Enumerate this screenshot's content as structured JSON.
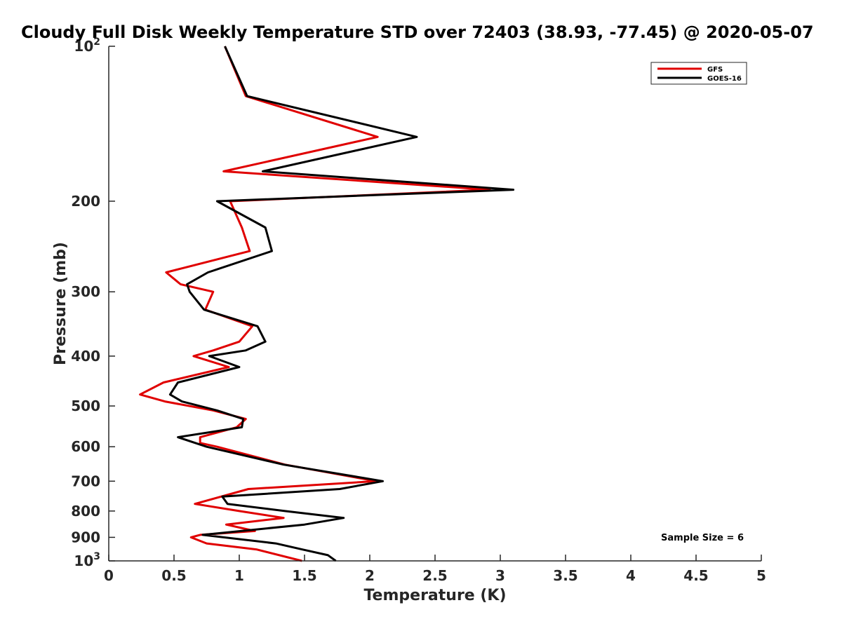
{
  "chart_data": {
    "type": "line",
    "title": "Cloudy Full Disk Weekly Temperature STD over 72403 (38.93, -77.45) @ 2020-05-07",
    "xlabel": "Temperature (K)",
    "ylabel": "Pressure (mb)",
    "xlim": [
      0,
      5
    ],
    "ylim": [
      100,
      1000
    ],
    "y_scale": "log",
    "y_reversed": true,
    "x_ticks": [
      {
        "value": 0,
        "label": "0"
      },
      {
        "value": 0.5,
        "label": "0.5"
      },
      {
        "value": 1,
        "label": "1"
      },
      {
        "value": 1.5,
        "label": "1.5"
      },
      {
        "value": 2,
        "label": "2"
      },
      {
        "value": 2.5,
        "label": "2.5"
      },
      {
        "value": 3,
        "label": "3"
      },
      {
        "value": 3.5,
        "label": "3.5"
      },
      {
        "value": 4,
        "label": "4"
      },
      {
        "value": 4.5,
        "label": "4.5"
      },
      {
        "value": 5,
        "label": "5"
      }
    ],
    "y_ticks": [
      {
        "value": 100,
        "base": "10",
        "exp": "2"
      },
      {
        "value": 200,
        "label": "200"
      },
      {
        "value": 300,
        "label": "300"
      },
      {
        "value": 400,
        "label": "400"
      },
      {
        "value": 500,
        "label": "500"
      },
      {
        "value": 600,
        "label": "600"
      },
      {
        "value": 700,
        "label": "700"
      },
      {
        "value": 800,
        "label": "800"
      },
      {
        "value": 900,
        "label": "900"
      },
      {
        "value": 1000,
        "base": "10",
        "exp": "3"
      }
    ],
    "grid": false,
    "legend_position": "top-right",
    "annotation": "Sample Size = 6",
    "series": [
      {
        "name": "GFS",
        "color": "#e00000",
        "points": [
          [
            0.89,
            100
          ],
          [
            1.05,
            125
          ],
          [
            2.06,
            150
          ],
          [
            0.88,
            175
          ],
          [
            2.92,
            190
          ],
          [
            0.93,
            200
          ],
          [
            1.02,
            225
          ],
          [
            1.08,
            250
          ],
          [
            0.44,
            275
          ],
          [
            0.55,
            290
          ],
          [
            0.8,
            300
          ],
          [
            0.74,
            325
          ],
          [
            1.1,
            350
          ],
          [
            1.0,
            375
          ],
          [
            0.8,
            390
          ],
          [
            0.65,
            400
          ],
          [
            0.92,
            420
          ],
          [
            0.42,
            450
          ],
          [
            0.24,
            475
          ],
          [
            0.43,
            490
          ],
          [
            0.8,
            510
          ],
          [
            1.05,
            530
          ],
          [
            0.98,
            550
          ],
          [
            0.7,
            575
          ],
          [
            0.7,
            590
          ],
          [
            0.83,
            600
          ],
          [
            1.35,
            650
          ],
          [
            2.05,
            700
          ],
          [
            1.07,
            725
          ],
          [
            0.66,
            775
          ],
          [
            1.0,
            800
          ],
          [
            1.34,
            825
          ],
          [
            0.9,
            850
          ],
          [
            1.12,
            875
          ],
          [
            0.7,
            890
          ],
          [
            0.63,
            900
          ],
          [
            0.75,
            925
          ],
          [
            1.13,
            950
          ],
          [
            1.48,
            1000
          ]
        ]
      },
      {
        "name": "GOES-16",
        "color": "#000000",
        "points": [
          [
            0.89,
            100
          ],
          [
            1.06,
            125
          ],
          [
            2.36,
            150
          ],
          [
            1.18,
            175
          ],
          [
            3.1,
            190
          ],
          [
            0.83,
            200
          ],
          [
            1.2,
            225
          ],
          [
            1.25,
            250
          ],
          [
            0.76,
            275
          ],
          [
            0.6,
            290
          ],
          [
            0.62,
            300
          ],
          [
            0.73,
            325
          ],
          [
            1.14,
            350
          ],
          [
            1.2,
            375
          ],
          [
            1.05,
            390
          ],
          [
            0.77,
            400
          ],
          [
            1.0,
            420
          ],
          [
            0.53,
            450
          ],
          [
            0.47,
            475
          ],
          [
            0.56,
            490
          ],
          [
            0.83,
            510
          ],
          [
            1.03,
            530
          ],
          [
            1.02,
            550
          ],
          [
            0.53,
            575
          ],
          [
            0.75,
            600
          ],
          [
            1.34,
            650
          ],
          [
            2.1,
            700
          ],
          [
            1.77,
            725
          ],
          [
            0.87,
            750
          ],
          [
            0.91,
            775
          ],
          [
            1.35,
            800
          ],
          [
            1.8,
            825
          ],
          [
            1.5,
            850
          ],
          [
            0.72,
            890
          ],
          [
            1.28,
            925
          ],
          [
            1.48,
            950
          ],
          [
            1.68,
            975
          ],
          [
            1.74,
            1000
          ]
        ]
      }
    ]
  }
}
